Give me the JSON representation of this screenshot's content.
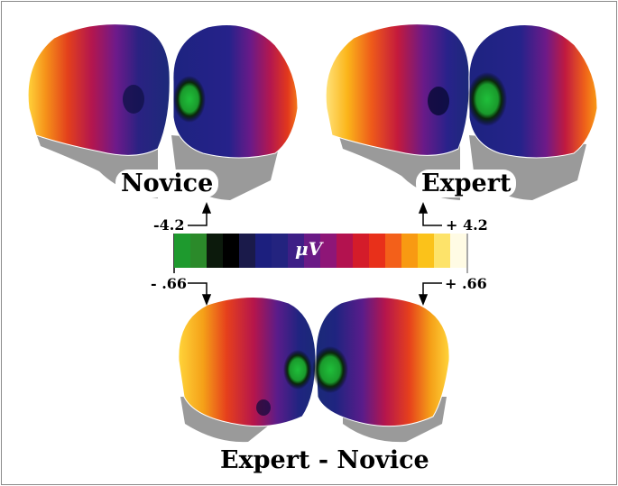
{
  "labels": {
    "novice": "Novice",
    "expert": "Expert",
    "difference": "Expert - Novice"
  },
  "scale": {
    "unit": "μV",
    "top_min": "-4.2",
    "top_max": "+ 4.2",
    "bottom_min": "- .66",
    "bottom_max": "+ .66",
    "colors": [
      "#1e9a2e",
      "#2b8a2a",
      "#0c1a0c",
      "#000000",
      "#1a1a4a",
      "#1c1f7e",
      "#23237f",
      "#3d1f86",
      "#6a1a86",
      "#8e1677",
      "#b3124f",
      "#d41c2a",
      "#e8301a",
      "#f3601a",
      "#f89a12",
      "#fbc21a",
      "#fde36a",
      "#fffbe4"
    ]
  }
}
